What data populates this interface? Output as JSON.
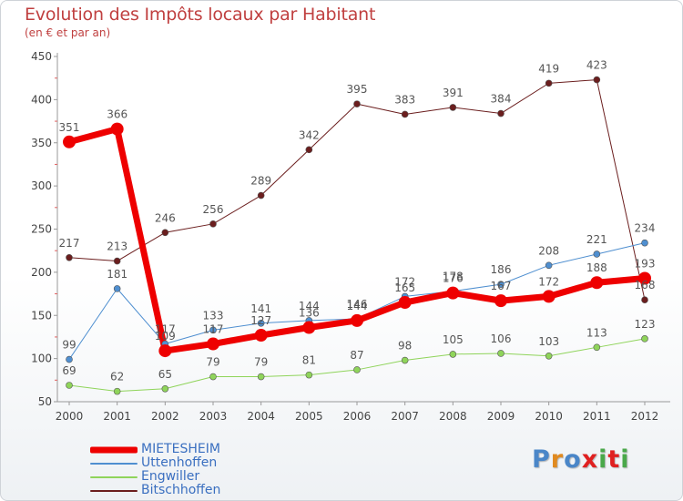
{
  "chart_data": {
    "type": "line",
    "title": "Evolution des Impôts locaux par Habitant",
    "subtitle": "(en € et par an)",
    "xlabel": "",
    "ylabel": "",
    "x": [
      "2000",
      "2001",
      "2002",
      "2003",
      "2004",
      "2005",
      "2006",
      "2007",
      "2008",
      "2009",
      "2010",
      "2011",
      "2012"
    ],
    "ylim": [
      50,
      450
    ],
    "yticks": [
      "50",
      "100",
      "150",
      "200",
      "250",
      "300",
      "350",
      "400",
      "450"
    ],
    "grid": false,
    "legend_position": "bottom-left",
    "series": [
      {
        "name": "MIETESHEIM",
        "color": "#ee0000",
        "width": 7,
        "marker": 7,
        "values": [
          351,
          366,
          109,
          117,
          127,
          136,
          144,
          165,
          176,
          167,
          172,
          188,
          193
        ]
      },
      {
        "name": "Uttenhoffen",
        "color": "#4f8fd0",
        "width": 1,
        "marker": 3.5,
        "values": [
          99,
          181,
          117,
          133,
          141,
          144,
          146,
          172,
          178,
          186,
          208,
          221,
          234
        ]
      },
      {
        "name": "Engwiller",
        "color": "#8fd45a",
        "width": 1,
        "marker": 3.5,
        "values": [
          69,
          62,
          65,
          79,
          79,
          81,
          87,
          98,
          105,
          106,
          103,
          113,
          123
        ]
      },
      {
        "name": "Bitschhoffen",
        "color": "#6b1e1e",
        "width": 1,
        "marker": 3.5,
        "values": [
          217,
          213,
          246,
          256,
          289,
          342,
          395,
          383,
          391,
          384,
          419,
          423,
          168
        ]
      }
    ]
  },
  "logo": {
    "text": "Proxiti",
    "letter_colors": [
      "#4a86c8",
      "#e08a20",
      "#4a86c8",
      "#e02020",
      "#4aa84a",
      "#e02020",
      "#4aa84a"
    ]
  }
}
